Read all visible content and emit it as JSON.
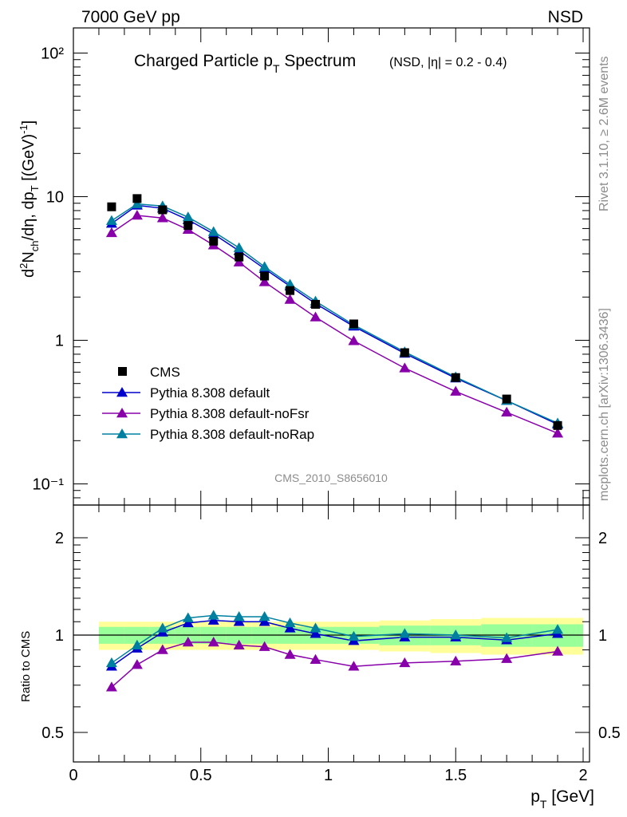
{
  "header": {
    "left": "7000 GeV pp",
    "right": "NSD",
    "title_main": "Charged Particle p",
    "title_sub": "T",
    "title_tail": " Spectrum",
    "title_small": "(NSD, |η| = 0.2 - 0.4)"
  },
  "side_text": {
    "rivet": "Rivet 3.1.10, ≥ 2.6M events",
    "mcplots": "mcplots.cern.ch [arXiv:1306.3436]"
  },
  "analysis_label": "CMS_2010_S8656010",
  "axes": {
    "ylabel_top": "d²N_ch/dη, dp_T [(GeV)⁻¹]",
    "ylabel_bottom": "Ratio to CMS",
    "xlabel_main": "p",
    "xlabel_sub": "T",
    "xlabel_unit": " [GeV]",
    "x_ticks": [
      "0",
      "0.5",
      "1",
      "1.5",
      "2"
    ],
    "top_y_ticks": [
      "10⁻¹",
      "1",
      "10",
      "10²"
    ],
    "bottom_y_ticks": [
      "0.5",
      "1",
      "2"
    ]
  },
  "legend": [
    {
      "label": "CMS",
      "marker": "square",
      "color": "#000000"
    },
    {
      "label": "Pythia 8.308 default",
      "marker": "triangle",
      "color": "#0000cc"
    },
    {
      "label": "Pythia 8.308 default-noFsr",
      "marker": "triangle",
      "color": "#8800aa"
    },
    {
      "label": "Pythia 8.308 default-noRap",
      "marker": "triangle",
      "color": "#0080a0"
    }
  ],
  "chart_data": {
    "type": "line",
    "xlim": [
      0,
      2
    ],
    "top_ylim": [
      0.07,
      150
    ],
    "top_yscale": "log",
    "bottom_ylim": [
      0.4,
      2.5
    ],
    "bottom_yscale": "log",
    "legend_position": "lower-left",
    "x": [
      0.15,
      0.25,
      0.35,
      0.45,
      0.55,
      0.65,
      0.75,
      0.85,
      0.95,
      1.1,
      1.3,
      1.5,
      1.7,
      1.9
    ],
    "x_bin_edges": [
      0.1,
      0.2,
      0.3,
      0.4,
      0.5,
      0.6,
      0.7,
      0.8,
      0.9,
      1.0,
      1.2,
      1.4,
      1.6,
      1.8,
      2.0
    ],
    "cms": [
      8.5,
      9.7,
      8.1,
      6.3,
      4.9,
      3.8,
      2.8,
      2.22,
      1.78,
      1.3,
      0.82,
      0.55,
      0.39,
      0.255
    ],
    "series": [
      {
        "name": "Pythia 8.308 default",
        "color": "#0000cc",
        "values": [
          6.5,
          8.7,
          8.3,
          6.9,
          5.5,
          4.2,
          3.15,
          2.38,
          1.8,
          1.25,
          0.81,
          0.545,
          0.38,
          0.26
        ],
        "ratio": [
          0.8,
          0.91,
          1.02,
          1.09,
          1.11,
          1.1,
          1.1,
          1.05,
          1.01,
          0.96,
          0.985,
          0.985,
          0.965,
          1.01
        ]
      },
      {
        "name": "Pythia 8.308 default-noFsr",
        "color": "#8800aa",
        "values": [
          5.6,
          7.4,
          7.1,
          5.9,
          4.6,
          3.5,
          2.55,
          1.92,
          1.45,
          0.99,
          0.64,
          0.44,
          0.315,
          0.225
        ],
        "ratio": [
          0.69,
          0.81,
          0.9,
          0.95,
          0.95,
          0.93,
          0.92,
          0.87,
          0.84,
          0.8,
          0.82,
          0.83,
          0.845,
          0.89
        ]
      },
      {
        "name": "Pythia 8.308 default-noRap",
        "color": "#0080a0",
        "values": [
          6.8,
          8.9,
          8.6,
          7.2,
          5.7,
          4.4,
          3.25,
          2.45,
          1.87,
          1.28,
          0.83,
          0.555,
          0.38,
          0.265
        ],
        "ratio": [
          0.82,
          0.93,
          1.05,
          1.13,
          1.15,
          1.14,
          1.14,
          1.09,
          1.05,
          0.99,
          1.01,
          1.0,
          0.98,
          1.04
        ]
      }
    ],
    "ratio_bands": {
      "green_half_width": [
        0.06,
        0.06,
        0.06,
        0.06,
        0.06,
        0.06,
        0.06,
        0.06,
        0.06,
        0.06,
        0.07,
        0.07,
        0.08,
        0.08
      ],
      "yellow_half_width": [
        0.1,
        0.1,
        0.1,
        0.1,
        0.1,
        0.1,
        0.1,
        0.1,
        0.1,
        0.1,
        0.11,
        0.12,
        0.13,
        0.13
      ]
    }
  }
}
